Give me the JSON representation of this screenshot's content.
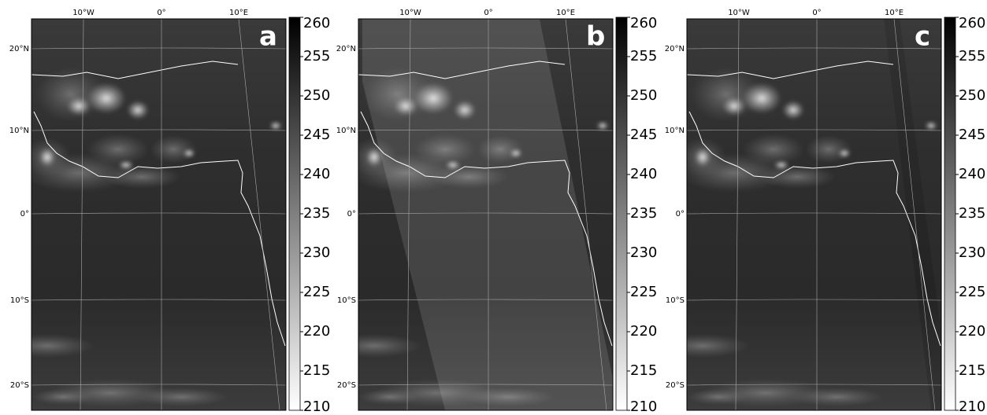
{
  "panels": [
    {
      "label": "a",
      "lon_labels": [
        "10°W",
        "0°",
        "10°E"
      ],
      "lat_labels": [
        "20°N",
        "10°N",
        "0°",
        "10°S",
        "20°S"
      ],
      "colorbar": {
        "ticks": [
          260,
          255,
          250,
          245,
          240,
          235,
          230,
          225,
          220,
          215,
          210
        ]
      }
    },
    {
      "label": "b",
      "lon_labels": [
        "10°W",
        "0°",
        "10°E"
      ],
      "lat_labels": [
        "20°N",
        "10°N",
        "0°",
        "10°S",
        "20°S"
      ],
      "colorbar": {
        "ticks": [
          260,
          255,
          250,
          245,
          240,
          235,
          230,
          225,
          220,
          215,
          210
        ]
      }
    },
    {
      "label": "c",
      "lon_labels": [
        "10°W",
        "0°",
        "10°E"
      ],
      "lat_labels": [
        "20°N",
        "10°N",
        "0°",
        "10°S",
        "20°S"
      ],
      "colorbar": {
        "ticks": [
          260,
          255,
          250,
          245,
          240,
          235,
          230,
          225,
          220,
          215,
          210
        ]
      }
    }
  ]
}
